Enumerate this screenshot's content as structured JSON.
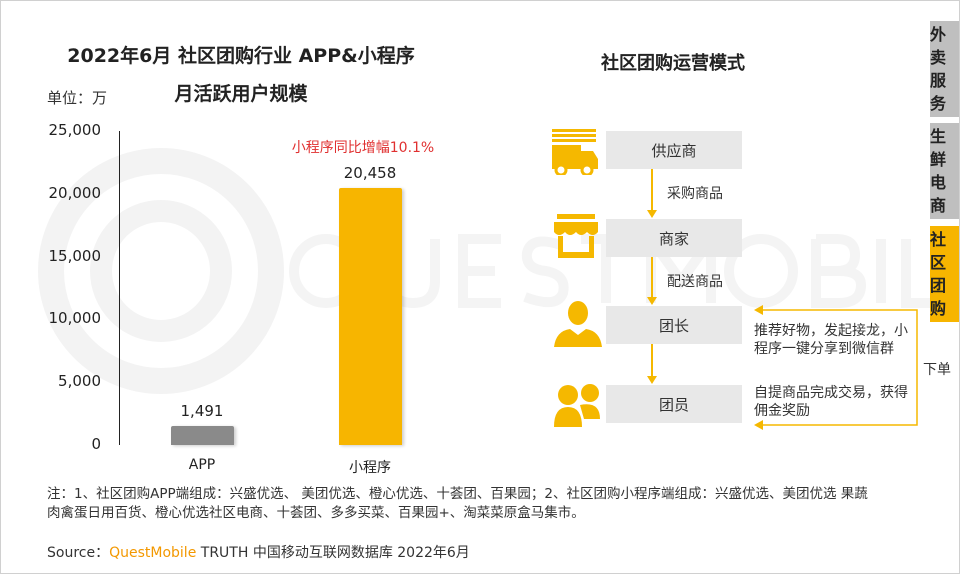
{
  "title_line1": "2022年6月 社区团购行业 APP&小程序",
  "title_line2": "月活跃用户规模",
  "unit_label": "单位：万",
  "annotation": "小程序同比增幅10.1%",
  "chart_data": {
    "type": "bar",
    "categories": [
      "APP",
      "小程序"
    ],
    "values": [
      1491,
      20458
    ],
    "value_labels": [
      "1,491",
      "20,458"
    ],
    "ylim": [
      0,
      25000
    ],
    "yticks": [
      "0",
      "5,000",
      "10,000",
      "15,000",
      "20,000",
      "25,000"
    ],
    "bar_colors": [
      "#8a8a8a",
      "#f7b500"
    ],
    "grid": false
  },
  "flow": {
    "title": "社区团购运营模式",
    "nodes": [
      "供应商",
      "商家",
      "团长",
      "团员"
    ],
    "edge_labels": [
      "采购商品",
      "配送商品"
    ],
    "feedback_text_1": "推荐好物，发起接龙，小程序一键分享到微信群",
    "feedback_text_2": "自提商品完成交易，获得佣金奖励",
    "feedback_label": "下单",
    "icons": [
      "truck-icon",
      "store-icon",
      "leader-icon",
      "group-icon"
    ],
    "accent": "#f5b800"
  },
  "tabs": [
    {
      "label": "外卖服务",
      "active": false
    },
    {
      "label": "生鲜电商",
      "active": false
    },
    {
      "label": "社区团购",
      "active": true
    }
  ],
  "note": "注：1、社区团购APP端组成：兴盛优选、 美团优选、橙心优选、十荟团、百果园；2、社区团购小程序端组成：兴盛优选、美团优选 果蔬肉禽蛋日用百货、橙心优选社区电商、十荟团、多多买菜、百果园+、淘菜菜原盒马集市。",
  "source": {
    "prefix": "Source：",
    "brand": "QuestMobile",
    "suffix": " TRUTH 中国移动互联网数据库 2022年6月"
  },
  "watermark": "QUESTMOBILE"
}
